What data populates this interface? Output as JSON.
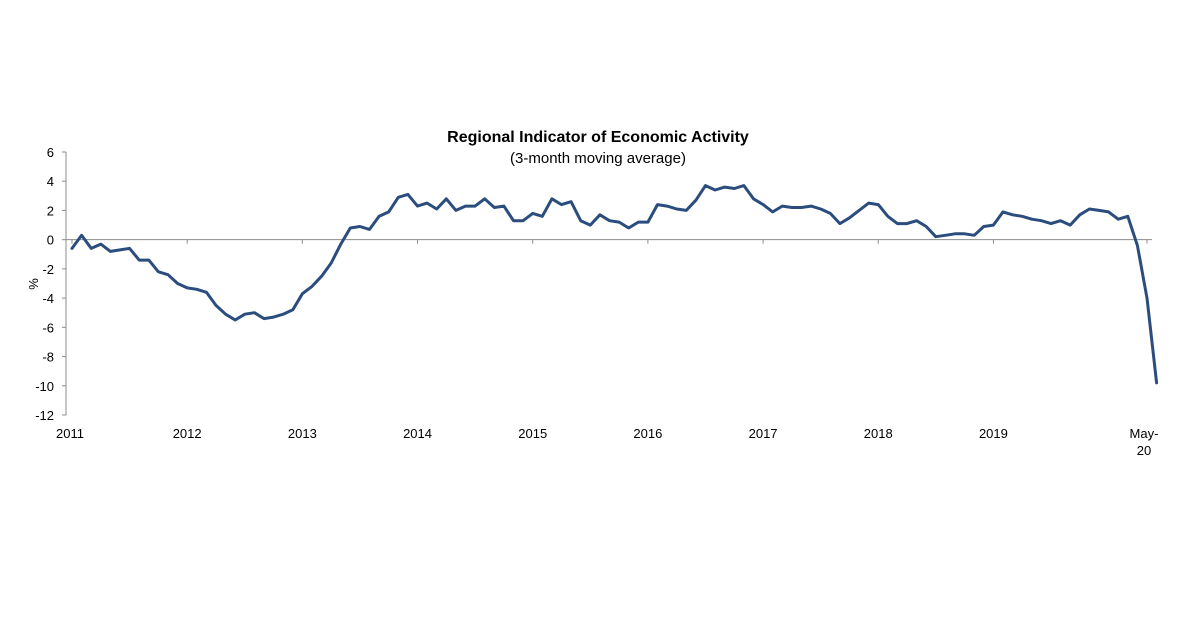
{
  "chart_data": {
    "type": "line",
    "title": "Regional Indicator of Economic Activity",
    "subtitle": "(3-month moving average)",
    "ylabel": "%",
    "xlabel": "",
    "ylim": [
      -12,
      6
    ],
    "yticks": [
      -12,
      -10,
      -8,
      -6,
      -4,
      -2,
      0,
      2,
      4,
      6
    ],
    "xlim": [
      "2011-01",
      "2020-05"
    ],
    "xticks": [
      {
        "at": "2011-01",
        "label": "2011"
      },
      {
        "at": "2012-01",
        "label": "2012"
      },
      {
        "at": "2013-01",
        "label": "2013"
      },
      {
        "at": "2014-01",
        "label": "2014"
      },
      {
        "at": "2015-01",
        "label": "2015"
      },
      {
        "at": "2016-01",
        "label": "2016"
      },
      {
        "at": "2017-01",
        "label": "2017"
      },
      {
        "at": "2018-01",
        "label": "2018"
      },
      {
        "at": "2019-01",
        "label": "2019"
      },
      {
        "at": "2020-05",
        "label": "May-\n20"
      }
    ],
    "grid": false,
    "zero_line": true,
    "line_color": "#2b4d7e",
    "series": [
      {
        "start": "2011-01",
        "frequency": "monthly",
        "values": [
          -0.6,
          0.3,
          -0.6,
          -0.3,
          -0.8,
          -0.7,
          -0.6,
          -1.4,
          -1.4,
          -2.2,
          -2.4,
          -3.0,
          -3.3,
          -3.4,
          -3.6,
          -4.5,
          -5.1,
          -5.5,
          -5.1,
          -5.0,
          -5.4,
          -5.3,
          -5.1,
          -4.8,
          -3.7,
          -3.2,
          -2.5,
          -1.6,
          -0.3,
          0.8,
          0.9,
          0.7,
          1.6,
          1.9,
          2.9,
          3.1,
          2.3,
          2.5,
          2.1,
          2.8,
          2.0,
          2.3,
          2.3,
          2.8,
          2.2,
          2.3,
          1.3,
          1.3,
          1.8,
          1.6,
          2.8,
          2.4,
          2.6,
          1.3,
          1.0,
          1.7,
          1.3,
          1.2,
          0.8,
          1.2,
          1.2,
          2.4,
          2.3,
          2.1,
          2.0,
          2.7,
          3.7,
          3.4,
          3.6,
          3.5,
          3.7,
          2.8,
          2.4,
          1.9,
          2.3,
          2.2,
          2.2,
          2.3,
          2.1,
          1.8,
          1.1,
          1.5,
          2.0,
          2.5,
          2.4,
          1.6,
          1.1,
          1.1,
          1.3,
          0.9,
          0.2,
          0.3,
          0.4,
          0.4,
          0.3,
          0.9,
          1.0,
          1.9,
          1.7,
          1.6,
          1.4,
          1.3,
          1.1,
          1.3,
          1.0,
          1.7,
          2.1,
          2.0,
          1.9,
          1.4,
          1.6,
          -0.4,
          -4.0,
          -9.8
        ]
      }
    ]
  }
}
